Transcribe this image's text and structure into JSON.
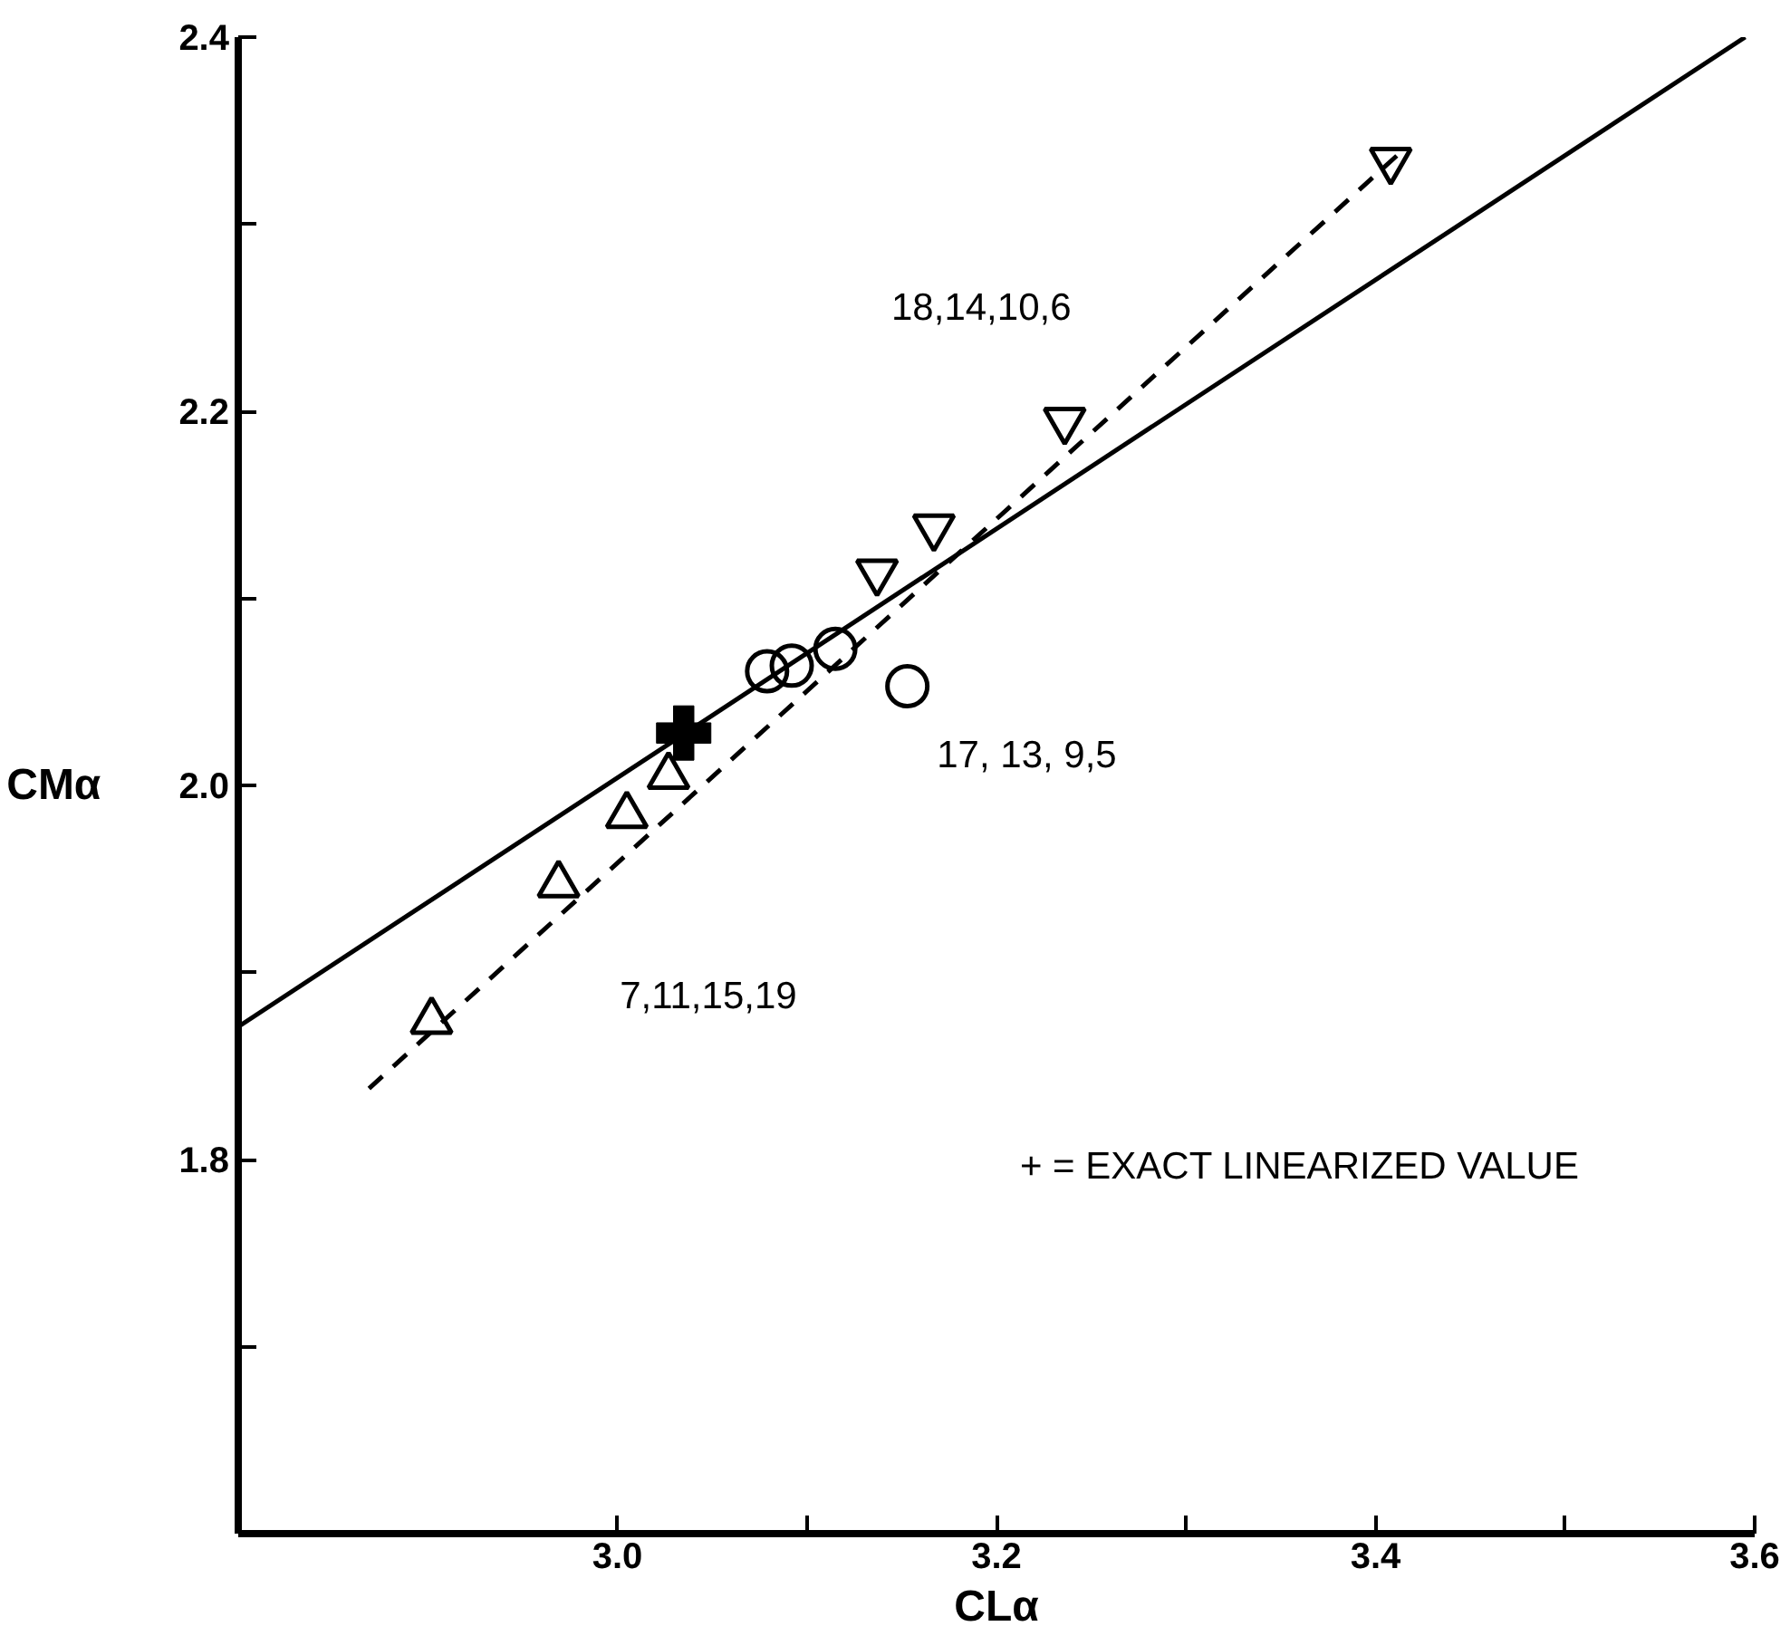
{
  "chart_data": {
    "type": "scatter",
    "xlabel": "CLα",
    "ylabel": "CMα",
    "xlim": [
      2.8,
      3.6
    ],
    "ylim": [
      1.6,
      2.4
    ],
    "xticks": [
      {
        "value": 3.0,
        "label": "3.0"
      },
      {
        "value": 3.1,
        "label": null
      },
      {
        "value": 3.2,
        "label": "3.2"
      },
      {
        "value": 3.3,
        "label": null
      },
      {
        "value": 3.4,
        "label": "3.4"
      },
      {
        "value": 3.5,
        "label": null
      },
      {
        "value": 3.6,
        "label": "3.6"
      }
    ],
    "yticks": [
      {
        "value": 1.7,
        "label": null
      },
      {
        "value": 1.8,
        "label": "1.8"
      },
      {
        "value": 1.9,
        "label": null
      },
      {
        "value": 2.0,
        "label": "2.0"
      },
      {
        "value": 2.1,
        "label": null
      },
      {
        "value": 2.2,
        "label": "2.2"
      },
      {
        "value": 2.3,
        "label": null
      },
      {
        "value": 2.4,
        "label": "2.4"
      }
    ],
    "grid": false,
    "series": [
      {
        "type": "line",
        "color": "#000000",
        "line_style": "solid",
        "marker": "none",
        "x": [
          2.8,
          3.595
        ],
        "values": [
          1.871,
          2.4
        ]
      },
      {
        "type": "line",
        "color": "#000000",
        "line_style": "dashed",
        "marker": "none",
        "x": [
          2.869,
          3.416
        ],
        "values": [
          1.838,
          2.341
        ]
      },
      {
        "color": "#000000",
        "marker": "triangle",
        "x": [
          2.902,
          2.969,
          3.005,
          3.027
        ],
        "values": [
          1.874,
          1.947,
          1.984,
          2.005
        ]
      },
      {
        "color": "#000000",
        "marker": "circle",
        "x": [
          3.079,
          3.092,
          3.115,
          3.153
        ],
        "values": [
          2.061,
          2.064,
          2.073,
          2.053
        ]
      },
      {
        "color": "#000000",
        "marker": "triangle_down",
        "x": [
          3.137,
          3.167,
          3.236,
          3.408
        ],
        "values": [
          2.114,
          2.138,
          2.195,
          2.334
        ]
      },
      {
        "color": "#000000",
        "marker": "cross",
        "x": [
          3.035
        ],
        "values": [
          2.028
        ]
      }
    ],
    "annotations": [
      "18,14,10,6",
      "17, 13, 9,5",
      "7,11,15,19",
      "+ = EXACT LINEARIZED VALUE"
    ]
  }
}
